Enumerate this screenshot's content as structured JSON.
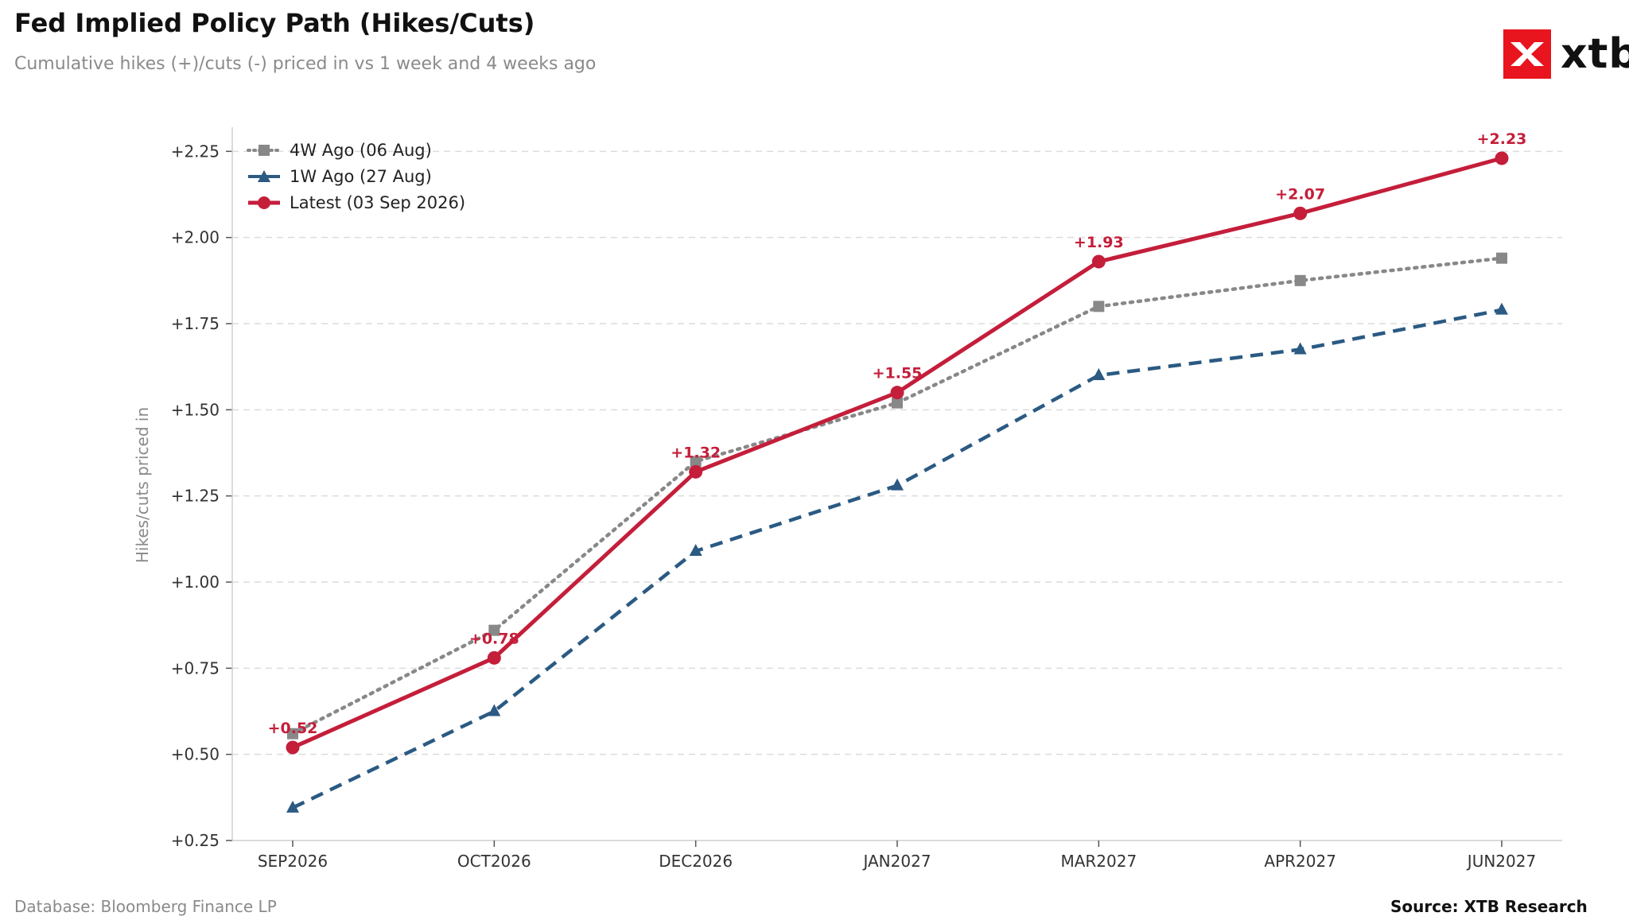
{
  "header": {
    "title": "Fed Implied Policy Path (Hikes/Cuts)",
    "subtitle": "Cumulative hikes (+)/cuts (-) priced in vs 1 week and 4 weeks ago"
  },
  "logo": {
    "text": "xtb",
    "accent": "#e8141e"
  },
  "footer": {
    "left": "Database: Bloomberg Finance LP",
    "right": "Source: XTB Research"
  },
  "chart_data": {
    "type": "line",
    "title": "Fed Implied Policy Path (Hikes/Cuts)",
    "subtitle": "Cumulative hikes (+)/cuts (-) priced in vs 1 week and 4 weeks ago",
    "xlabel": "",
    "ylabel": "Hikes/cuts priced in",
    "categories": [
      "SEP2026",
      "OCT2026",
      "DEC2026",
      "JAN2027",
      "MAR2027",
      "APR2027",
      "JUN2027"
    ],
    "ylim": [
      0.25,
      2.32
    ],
    "yticks": [
      0.25,
      0.5,
      0.75,
      1.0,
      1.25,
      1.5,
      1.75,
      2.0,
      2.25
    ],
    "ytick_labels": [
      "+0.25",
      "+0.50",
      "+0.75",
      "+1.00",
      "+1.25",
      "+1.50",
      "+1.75",
      "+2.00",
      "+2.25"
    ],
    "grid": "horizontal dashed",
    "legend": "top-left",
    "series": [
      {
        "name": "4W Ago (06 Aug)",
        "values": [
          0.56,
          0.86,
          1.35,
          1.52,
          1.8,
          1.875,
          1.94
        ],
        "color": "#888888",
        "style": "dotted",
        "marker": "square"
      },
      {
        "name": "1W Ago (27 Aug)",
        "values": [
          0.345,
          0.625,
          1.09,
          1.28,
          1.6,
          1.675,
          1.79
        ],
        "color": "#2b5a83",
        "style": "dashed",
        "marker": "triangle"
      },
      {
        "name": "Latest (03 Sep 2026)",
        "values": [
          0.52,
          0.78,
          1.32,
          1.55,
          1.93,
          2.07,
          2.23
        ],
        "color": "#c41e3a",
        "style": "solid",
        "marker": "circle"
      }
    ],
    "data_labels": [
      "+0.52",
      "+0.78",
      "+1.32",
      "+1.55",
      "+1.93",
      "+2.07",
      "+2.23"
    ]
  }
}
